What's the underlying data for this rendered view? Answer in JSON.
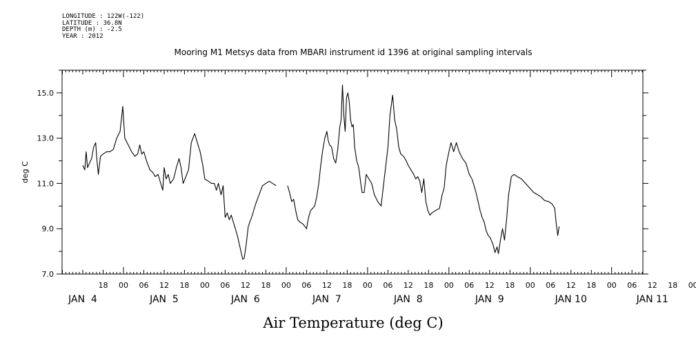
{
  "header": {
    "longitude": "LONGITUDE : 122W(-122)",
    "latitude": "LATITUDE : 36.8N",
    "depth": "DEPTH (m) : -2.5",
    "year": "YEAR : 2012"
  },
  "chart_data": {
    "type": "line",
    "title": "Mooring M1 Metsys data from MBARI instrument id 1396 at original sampling intervals",
    "xlabel": "Air Temperature (deg C)",
    "ylabel": "deg C",
    "x_unit": "hours since 2012-01-03 12:00",
    "xlim": [
      0,
      186
    ],
    "ylim": [
      7.0,
      16.0
    ],
    "yticks": [
      7.0,
      9.0,
      11.0,
      13.0,
      15.0
    ],
    "ytick_labels": [
      "7.0",
      "9.0",
      "11.0",
      "13.0",
      "15.0"
    ],
    "xtick_labels": [
      {
        "x": 6,
        "label": "18"
      },
      {
        "x": 12,
        "label": "00"
      },
      {
        "x": 18,
        "label": "06"
      },
      {
        "x": 24,
        "label": "12"
      },
      {
        "x": 30,
        "label": "18"
      },
      {
        "x": 36,
        "label": "00"
      },
      {
        "x": 42,
        "label": "06"
      },
      {
        "x": 48,
        "label": "12"
      },
      {
        "x": 54,
        "label": "18"
      },
      {
        "x": 60,
        "label": "00"
      },
      {
        "x": 66,
        "label": "06"
      },
      {
        "x": 72,
        "label": "12"
      },
      {
        "x": 78,
        "label": "18"
      },
      {
        "x": 84,
        "label": "00"
      },
      {
        "x": 90,
        "label": "06"
      },
      {
        "x": 96,
        "label": "12"
      },
      {
        "x": 102,
        "label": "18"
      },
      {
        "x": 108,
        "label": "00"
      },
      {
        "x": 114,
        "label": "06"
      },
      {
        "x": 120,
        "label": "12"
      },
      {
        "x": 126,
        "label": "18"
      },
      {
        "x": 132,
        "label": "00"
      },
      {
        "x": 138,
        "label": "06"
      },
      {
        "x": 144,
        "label": "12"
      },
      {
        "x": 150,
        "label": "18"
      },
      {
        "x": 156,
        "label": "00"
      },
      {
        "x": 162,
        "label": "06"
      },
      {
        "x": 168,
        "label": "12"
      },
      {
        "x": 174,
        "label": "18"
      },
      {
        "x": 180,
        "label": "00"
      },
      {
        "x": 186,
        "label": "06"
      }
    ],
    "day_labels": [
      {
        "x": 0,
        "label": "JAN  4"
      },
      {
        "x": 24,
        "label": "JAN  5"
      },
      {
        "x": 48,
        "label": "JAN  6"
      },
      {
        "x": 72,
        "label": "JAN  7"
      },
      {
        "x": 96,
        "label": "JAN  8"
      },
      {
        "x": 120,
        "label": "JAN  9"
      },
      {
        "x": 144,
        "label": "JAN 10"
      },
      {
        "x": 168,
        "label": "JAN 11"
      }
    ],
    "series": [
      {
        "segments": [
          [
            [
              0,
              11.8
            ],
            [
              0.6,
              11.6
            ],
            [
              1,
              12.4
            ],
            [
              1.4,
              11.7
            ],
            [
              2,
              11.9
            ],
            [
              2.6,
              12.1
            ],
            [
              3.2,
              12.6
            ],
            [
              3.8,
              12.8
            ],
            [
              4.2,
              12.0
            ],
            [
              4.6,
              11.4
            ],
            [
              5.2,
              12.2
            ],
            [
              6,
              12.3
            ],
            [
              7,
              12.4
            ],
            [
              8,
              12.4
            ],
            [
              9,
              12.5
            ],
            [
              10,
              13.0
            ],
            [
              11,
              13.3
            ],
            [
              11.8,
              14.4
            ],
            [
              12.4,
              13.0
            ],
            [
              13.4,
              12.7
            ],
            [
              14.4,
              12.4
            ],
            [
              15.4,
              12.2
            ],
            [
              16.2,
              12.3
            ],
            [
              16.8,
              12.7
            ],
            [
              17.4,
              12.3
            ],
            [
              18,
              12.4
            ],
            [
              18.8,
              12.0
            ],
            [
              19.8,
              11.6
            ],
            [
              20.6,
              11.5
            ],
            [
              21.4,
              11.3
            ],
            [
              22.2,
              11.4
            ],
            [
              23,
              11.0
            ],
            [
              23.6,
              10.7
            ],
            [
              24,
              11.7
            ],
            [
              24.6,
              11.2
            ],
            [
              25.2,
              11.4
            ],
            [
              25.8,
              11.0
            ],
            [
              26.8,
              11.2
            ],
            [
              27.6,
              11.7
            ],
            [
              28.4,
              12.1
            ],
            [
              29,
              11.7
            ],
            [
              29.6,
              11.0
            ],
            [
              30.4,
              11.3
            ],
            [
              31.2,
              11.6
            ],
            [
              32,
              12.8
            ],
            [
              33,
              13.2
            ],
            [
              33.8,
              12.8
            ],
            [
              34.6,
              12.4
            ],
            [
              35.4,
              11.8
            ],
            [
              36,
              11.2
            ],
            [
              37,
              11.1
            ],
            [
              38,
              11.0
            ],
            [
              38.8,
              11.0
            ],
            [
              39.4,
              10.7
            ],
            [
              40,
              11.0
            ],
            [
              40.8,
              10.5
            ],
            [
              41.4,
              10.9
            ],
            [
              42,
              9.5
            ],
            [
              42.6,
              9.7
            ],
            [
              43.2,
              9.4
            ],
            [
              43.8,
              9.6
            ],
            [
              44.4,
              9.3
            ],
            [
              45,
              9.0
            ],
            [
              45.6,
              8.7
            ],
            [
              46.2,
              8.3
            ],
            [
              46.8,
              7.9
            ],
            [
              47.2,
              7.65
            ],
            [
              47.6,
              7.7
            ],
            [
              48.2,
              8.3
            ],
            [
              48.8,
              9.1
            ],
            [
              50,
              9.6
            ],
            [
              51,
              10.1
            ],
            [
              52,
              10.5
            ],
            [
              53,
              10.9
            ],
            [
              54,
              11.0
            ],
            [
              55,
              11.1
            ],
            [
              56,
              11.0
            ],
            [
              57,
              10.9
            ]
          ],
          [
            [
              60.4,
              10.9
            ],
            [
              61,
              10.6
            ],
            [
              61.6,
              10.2
            ],
            [
              62.2,
              10.3
            ],
            [
              62.8,
              9.8
            ],
            [
              63.4,
              9.4
            ],
            [
              64,
              9.3
            ],
            [
              65,
              9.2
            ],
            [
              66,
              9.0
            ],
            [
              66.6,
              9.5
            ],
            [
              67.2,
              9.8
            ],
            [
              67.8,
              9.9
            ],
            [
              68.4,
              10.0
            ],
            [
              69,
              10.4
            ],
            [
              69.6,
              11.0
            ],
            [
              70.2,
              11.8
            ],
            [
              70.8,
              12.5
            ],
            [
              71.4,
              13.0
            ],
            [
              72,
              13.3
            ],
            [
              72.4,
              12.9
            ],
            [
              72.8,
              12.7
            ],
            [
              73.4,
              12.6
            ],
            [
              74,
              12.1
            ],
            [
              74.6,
              11.9
            ],
            [
              75.2,
              12.5
            ],
            [
              75.8,
              13.5
            ],
            [
              76.2,
              13.8
            ],
            [
              76.6,
              15.35
            ],
            [
              77,
              14.0
            ],
            [
              77.4,
              13.3
            ],
            [
              77.8,
              14.8
            ],
            [
              78.2,
              15.0
            ],
            [
              78.6,
              14.6
            ],
            [
              79,
              13.8
            ],
            [
              79.4,
              13.5
            ],
            [
              79.8,
              13.6
            ],
            [
              80.2,
              12.6
            ],
            [
              80.8,
              12.0
            ],
            [
              81.4,
              11.7
            ],
            [
              82,
              11.0
            ],
            [
              82.4,
              10.6
            ],
            [
              83,
              10.6
            ],
            [
              83.6,
              11.4
            ],
            [
              84.4,
              11.2
            ],
            [
              85.2,
              11.0
            ],
            [
              86,
              10.5
            ],
            [
              87,
              10.2
            ],
            [
              88,
              10.0
            ],
            [
              89,
              11.3
            ],
            [
              90,
              12.6
            ],
            [
              90.6,
              14.0
            ],
            [
              91.4,
              14.9
            ],
            [
              92,
              13.8
            ],
            [
              92.6,
              13.4
            ],
            [
              93.2,
              12.6
            ],
            [
              93.8,
              12.3
            ],
            [
              94.6,
              12.2
            ],
            [
              95.4,
              12.0
            ],
            [
              96,
              11.8
            ],
            [
              96.8,
              11.6
            ],
            [
              97.6,
              11.4
            ],
            [
              98.2,
              11.2
            ],
            [
              98.8,
              11.3
            ],
            [
              99.4,
              11.1
            ],
            [
              100,
              10.6
            ],
            [
              100.6,
              11.2
            ],
            [
              101.2,
              10.2
            ],
            [
              101.8,
              9.8
            ],
            [
              102.4,
              9.6
            ],
            [
              103,
              9.7
            ],
            [
              104,
              9.8
            ],
            [
              105.2,
              9.9
            ],
            [
              106,
              10.5
            ],
            [
              106.6,
              10.8
            ],
            [
              107.2,
              11.8
            ],
            [
              108,
              12.4
            ],
            [
              108.6,
              12.8
            ],
            [
              109.4,
              12.4
            ],
            [
              110.2,
              12.8
            ],
            [
              111,
              12.4
            ],
            [
              112,
              12.1
            ],
            [
              113,
              11.9
            ],
            [
              114,
              11.4
            ],
            [
              114.8,
              11.2
            ],
            [
              115.4,
              10.9
            ],
            [
              116,
              10.6
            ],
            [
              116.6,
              10.2
            ],
            [
              117.2,
              9.8
            ],
            [
              117.8,
              9.5
            ],
            [
              118.4,
              9.3
            ],
            [
              119,
              8.9
            ],
            [
              119.6,
              8.7
            ],
            [
              120.2,
              8.6
            ],
            [
              121,
              8.3
            ],
            [
              121.6,
              7.95
            ],
            [
              122.2,
              8.2
            ],
            [
              122.6,
              7.9
            ],
            [
              123.2,
              8.5
            ],
            [
              123.8,
              9.0
            ],
            [
              124.4,
              8.5
            ],
            [
              125,
              9.4
            ],
            [
              125.6,
              10.5
            ],
            [
              126.4,
              11.3
            ],
            [
              127.2,
              11.4
            ],
            [
              128.2,
              11.3
            ],
            [
              129.4,
              11.2
            ],
            [
              130.6,
              11.0
            ],
            [
              131.8,
              10.8
            ],
            [
              133,
              10.6
            ],
            [
              134.2,
              10.5
            ],
            [
              135.2,
              10.4
            ],
            [
              136.2,
              10.25
            ],
            [
              137.4,
              10.2
            ],
            [
              138.4,
              10.1
            ],
            [
              139.2,
              9.9
            ],
            [
              139.6,
              9.3
            ],
            [
              140.1,
              8.7
            ],
            [
              140.5,
              9.1
            ]
          ]
        ]
      }
    ]
  }
}
